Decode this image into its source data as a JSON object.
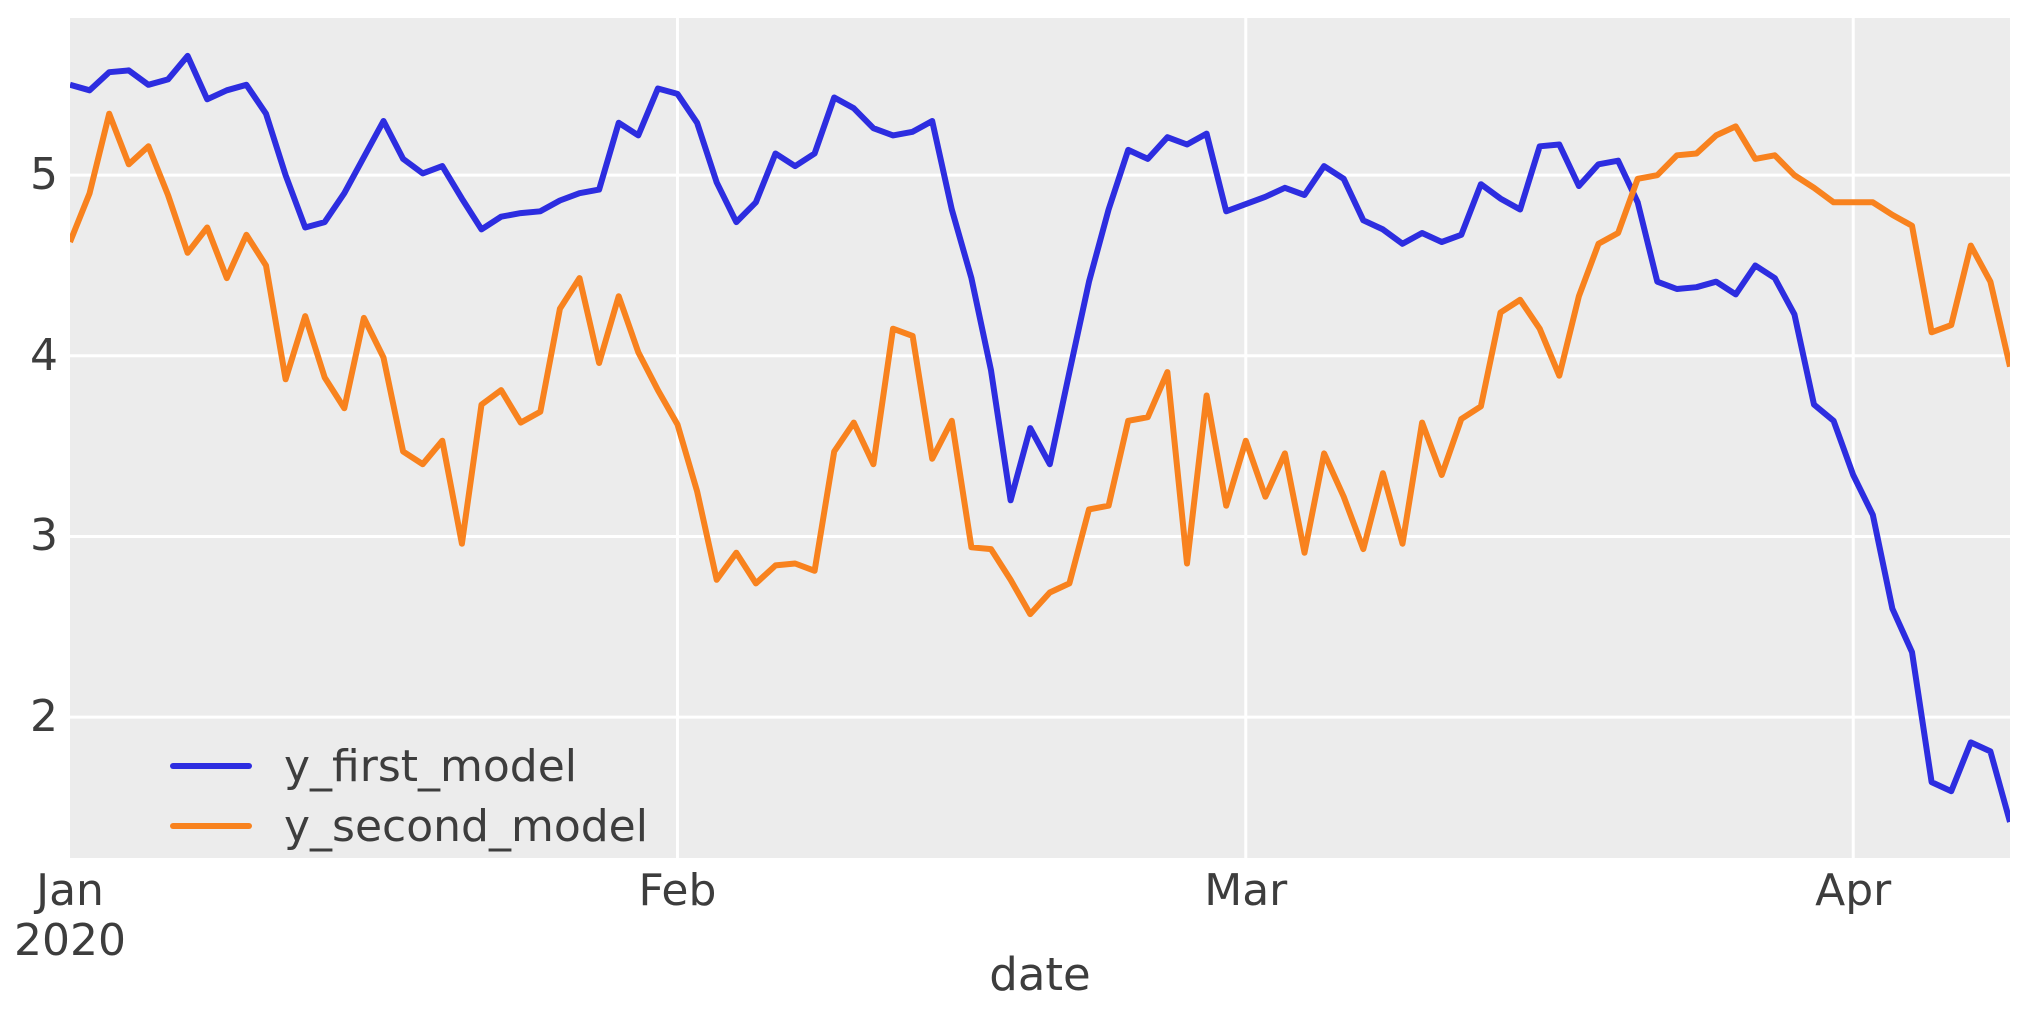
{
  "figure": {
    "background_color": "#ffffff",
    "plot_background_color": "#ececec",
    "grid_color": "#ffffff",
    "text_color": "#3d3d3d"
  },
  "chart_data": {
    "type": "line",
    "title": "",
    "xlabel": "date",
    "ylabel": "",
    "x_unit": "day",
    "start_date": "2020-01-01",
    "n_points": 100,
    "ylim": [
      1.22,
      5.87
    ],
    "grid": true,
    "legend_position": "lower-left",
    "y_ticks": [
      {
        "value": 5,
        "label": "5"
      },
      {
        "value": 4,
        "label": "4"
      },
      {
        "value": 3,
        "label": "3"
      },
      {
        "value": 2,
        "label": "2"
      }
    ],
    "x_ticks": [
      {
        "day": 0,
        "label": "Jan",
        "label2": "2020"
      },
      {
        "day": 31,
        "label": "Feb",
        "label2": ""
      },
      {
        "day": 60,
        "label": "Mar",
        "label2": ""
      },
      {
        "day": 91,
        "label": "Apr",
        "label2": ""
      }
    ],
    "series": [
      {
        "name": "y_first_model",
        "color": "#2d2de0",
        "values": [
          5.5,
          5.47,
          5.57,
          5.58,
          5.5,
          5.53,
          5.66,
          5.42,
          5.47,
          5.5,
          5.34,
          5.0,
          4.71,
          4.74,
          4.9,
          5.1,
          5.3,
          5.09,
          5.01,
          5.05,
          4.87,
          4.7,
          4.77,
          4.79,
          4.8,
          4.86,
          4.9,
          4.92,
          5.29,
          5.22,
          5.48,
          5.45,
          5.29,
          4.96,
          4.74,
          4.85,
          5.12,
          5.05,
          5.12,
          5.43,
          5.37,
          5.26,
          5.22,
          5.24,
          5.3,
          4.81,
          4.43,
          3.92,
          3.2,
          3.6,
          3.4,
          3.91,
          4.41,
          4.81,
          5.14,
          5.09,
          5.21,
          5.17,
          5.23,
          4.8,
          4.84,
          4.88,
          4.93,
          4.89,
          5.05,
          4.98,
          4.75,
          4.7,
          4.62,
          4.68,
          4.63,
          4.67,
          4.95,
          4.87,
          4.81,
          5.16,
          5.17,
          4.94,
          5.06,
          5.08,
          4.85,
          4.41,
          4.37,
          4.38,
          4.41,
          4.34,
          4.5,
          4.43,
          4.23,
          3.73,
          3.64,
          3.34,
          3.12,
          2.6,
          2.36,
          1.64,
          1.59,
          1.86,
          1.81,
          1.42
        ]
      },
      {
        "name": "y_second_model",
        "color": "#f8821e",
        "values": [
          4.63,
          4.9,
          5.34,
          5.06,
          5.16,
          4.89,
          4.57,
          4.71,
          4.43,
          4.67,
          4.5,
          3.87,
          4.22,
          3.88,
          3.71,
          4.21,
          3.99,
          3.47,
          3.4,
          3.53,
          2.96,
          3.73,
          3.81,
          3.63,
          3.69,
          4.26,
          4.43,
          3.96,
          4.33,
          4.02,
          3.81,
          3.62,
          3.25,
          2.76,
          2.91,
          2.74,
          2.84,
          2.85,
          2.81,
          3.47,
          3.63,
          3.4,
          4.15,
          4.11,
          3.43,
          3.64,
          2.94,
          2.93,
          2.76,
          2.57,
          2.69,
          2.74,
          3.15,
          3.17,
          3.64,
          3.66,
          3.91,
          2.85,
          3.78,
          3.17,
          3.53,
          3.22,
          3.46,
          2.91,
          3.46,
          3.22,
          2.93,
          3.35,
          2.96,
          3.63,
          3.34,
          3.65,
          3.72,
          4.24,
          4.31,
          4.15,
          3.89,
          4.33,
          4.62,
          4.68,
          4.98,
          5.0,
          5.11,
          5.12,
          5.22,
          5.27,
          5.09,
          5.11,
          5.0,
          4.93,
          4.85,
          4.85,
          4.85,
          4.78,
          4.72,
          4.13,
          4.17,
          4.61,
          4.41,
          3.94
        ]
      }
    ]
  }
}
